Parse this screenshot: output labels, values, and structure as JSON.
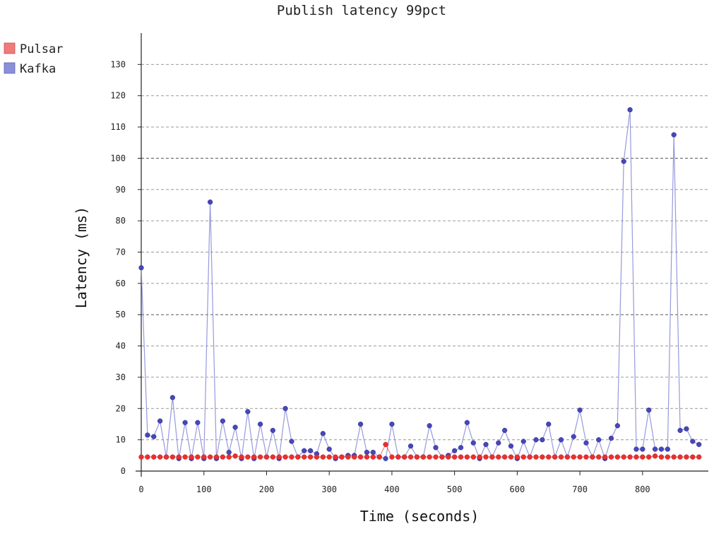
{
  "chart_data": {
    "type": "line",
    "title": "Publish latency 99pct",
    "xlabel": "Time (seconds)",
    "ylabel": "Latency (ms)",
    "xlim": [
      0,
      900
    ],
    "ylim": [
      0,
      140
    ],
    "xticks": [
      0,
      100,
      200,
      300,
      400,
      500,
      600,
      700,
      800
    ],
    "yticks": [
      0,
      10,
      20,
      30,
      40,
      50,
      60,
      70,
      80,
      90,
      100,
      110,
      120,
      130
    ],
    "grid": "horizontal dashed",
    "legend_position": "top-left",
    "series": [
      {
        "name": "Pulsar",
        "color": "#e8312f",
        "x": [
          0,
          10,
          20,
          30,
          40,
          50,
          60,
          70,
          80,
          90,
          100,
          110,
          120,
          130,
          140,
          150,
          160,
          170,
          180,
          190,
          200,
          210,
          220,
          230,
          240,
          250,
          260,
          270,
          280,
          290,
          300,
          310,
          320,
          330,
          340,
          350,
          360,
          370,
          380,
          390,
          400,
          410,
          420,
          430,
          440,
          450,
          460,
          470,
          480,
          490,
          500,
          510,
          520,
          530,
          540,
          550,
          560,
          570,
          580,
          590,
          600,
          610,
          620,
          630,
          640,
          650,
          660,
          670,
          680,
          690,
          700,
          710,
          720,
          730,
          740,
          750,
          760,
          770,
          780,
          790,
          800,
          810,
          820,
          830,
          840,
          850,
          860,
          870,
          880,
          890
        ],
        "values": [
          4.5,
          4.5,
          4.5,
          4.5,
          4.5,
          4.5,
          4.5,
          4.5,
          4.5,
          4.5,
          4.5,
          4.5,
          4.5,
          4.5,
          4.5,
          4.8,
          4.5,
          4.5,
          4.5,
          4.5,
          4.5,
          4.5,
          4.5,
          4.5,
          4.5,
          4.5,
          4.5,
          4.5,
          4.5,
          4.5,
          4.5,
          4.5,
          4.5,
          4.5,
          4.5,
          4.5,
          4.5,
          4.5,
          4.5,
          8.5,
          4.5,
          4.5,
          4.5,
          4.5,
          4.5,
          4.5,
          4.5,
          4.5,
          4.5,
          4.5,
          4.5,
          4.5,
          4.5,
          4.5,
          4.5,
          4.5,
          4.5,
          4.5,
          4.5,
          4.5,
          4.5,
          4.5,
          4.5,
          4.5,
          4.5,
          4.5,
          4.5,
          4.5,
          4.5,
          4.5,
          4.5,
          4.5,
          4.5,
          4.5,
          4.5,
          4.5,
          4.5,
          4.5,
          4.5,
          4.5,
          4.5,
          4.5,
          4.8,
          4.5,
          4.5,
          4.5,
          4.5,
          4.5,
          4.5,
          4.5
        ]
      },
      {
        "name": "Kafka",
        "color": "#4747b8",
        "line_color": "#8b8fd9",
        "x": [
          0,
          10,
          20,
          30,
          40,
          50,
          60,
          70,
          80,
          90,
          100,
          110,
          120,
          130,
          140,
          150,
          160,
          170,
          180,
          190,
          200,
          210,
          220,
          230,
          240,
          250,
          260,
          270,
          280,
          290,
          300,
          310,
          320,
          330,
          340,
          350,
          360,
          370,
          380,
          390,
          400,
          410,
          420,
          430,
          440,
          450,
          460,
          470,
          480,
          490,
          500,
          510,
          520,
          530,
          540,
          550,
          560,
          570,
          580,
          590,
          600,
          610,
          620,
          630,
          640,
          650,
          660,
          670,
          680,
          690,
          700,
          710,
          720,
          730,
          740,
          750,
          760,
          770,
          780,
          790,
          800,
          810,
          820,
          830,
          840,
          850,
          860,
          870,
          880,
          890
        ],
        "values": [
          65,
          11.5,
          11,
          16,
          4.5,
          23.5,
          4,
          15.5,
          4,
          15.5,
          4,
          86,
          4,
          16,
          6,
          14,
          4,
          19,
          4,
          15,
          4.5,
          13,
          4,
          20,
          9.5,
          4.5,
          6.5,
          6.5,
          5.5,
          12,
          7,
          4,
          4.5,
          5,
          5,
          15,
          6,
          6,
          4.5,
          4,
          15,
          4.5,
          4.5,
          8,
          4.5,
          4.5,
          14.5,
          7.5,
          4.5,
          5,
          6.5,
          7.5,
          15.5,
          9,
          4,
          8.5,
          4.5,
          9,
          13,
          8,
          4,
          9.5,
          4.5,
          10,
          10,
          15,
          4.5,
          10,
          4.5,
          11,
          19.5,
          9,
          4.5,
          10,
          4,
          10.5,
          14.5,
          99,
          115.5,
          7,
          7,
          19.5,
          7,
          7,
          7,
          107.5,
          13,
          13.5,
          9.5,
          8.5
        ]
      }
    ]
  }
}
